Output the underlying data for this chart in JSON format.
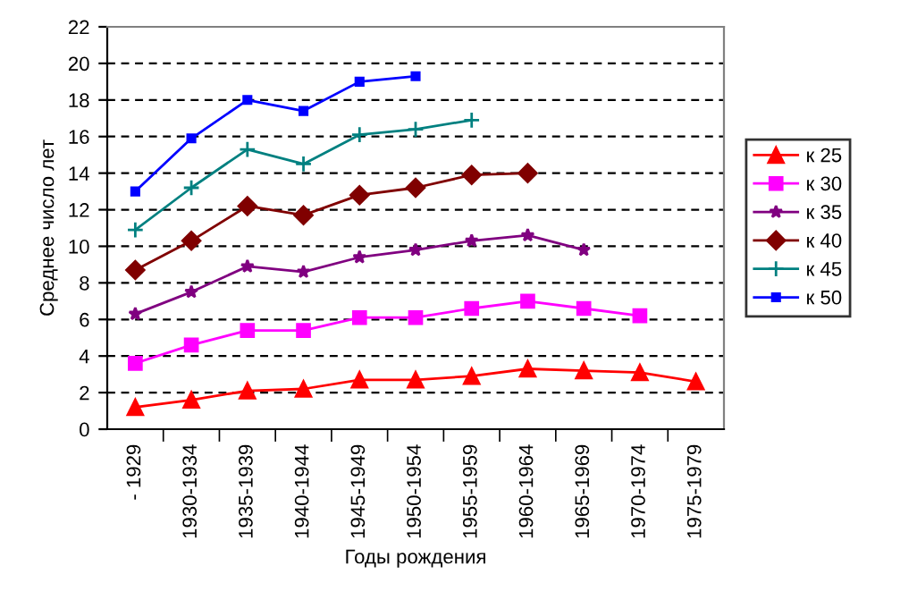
{
  "chart_data": {
    "type": "line",
    "xlabel": "Годы рождения",
    "ylabel": "Среднее число лет",
    "categories": [
      "- 1929",
      "1930-1934",
      "1935-1939",
      "1940-1944",
      "1945-1949",
      "1950-1954",
      "1955-1959",
      "1960-1964",
      "1965-1969",
      "1970-1974",
      "1975-1979"
    ],
    "series": [
      {
        "name": "к 25",
        "color": "#ff0000",
        "marker": "triangle",
        "values": [
          1.2,
          1.6,
          2.1,
          2.2,
          2.7,
          2.7,
          2.9,
          3.3,
          3.2,
          3.1,
          2.6
        ]
      },
      {
        "name": "к 30",
        "color": "#ff00ff",
        "marker": "square",
        "values": [
          3.6,
          4.6,
          5.4,
          5.4,
          6.1,
          6.1,
          6.6,
          7.0,
          6.6,
          6.2,
          null
        ]
      },
      {
        "name": "к 35",
        "color": "#800080",
        "marker": "star",
        "values": [
          6.3,
          7.5,
          8.9,
          8.6,
          9.4,
          9.8,
          10.3,
          10.6,
          9.8,
          null,
          null
        ]
      },
      {
        "name": "к 40",
        "color": "#800000",
        "marker": "diamond",
        "values": [
          8.7,
          10.3,
          12.2,
          11.7,
          12.8,
          13.2,
          13.9,
          14.0,
          null,
          null,
          null
        ]
      },
      {
        "name": "к 45",
        "color": "#008080",
        "marker": "cross",
        "values": [
          10.9,
          13.2,
          15.3,
          14.5,
          16.1,
          16.4,
          16.9,
          null,
          null,
          null,
          null
        ]
      },
      {
        "name": "к 50",
        "color": "#0000ff",
        "marker": "square",
        "values": [
          13.0,
          15.9,
          18.0,
          17.4,
          19.0,
          19.3,
          null,
          null,
          null,
          null,
          null
        ]
      }
    ],
    "ylim": [
      0,
      22
    ],
    "yticks": [
      0,
      2,
      4,
      6,
      8,
      10,
      12,
      14,
      16,
      18,
      20,
      22
    ],
    "grid": "y",
    "legend": "right",
    "line_style": "solid"
  }
}
